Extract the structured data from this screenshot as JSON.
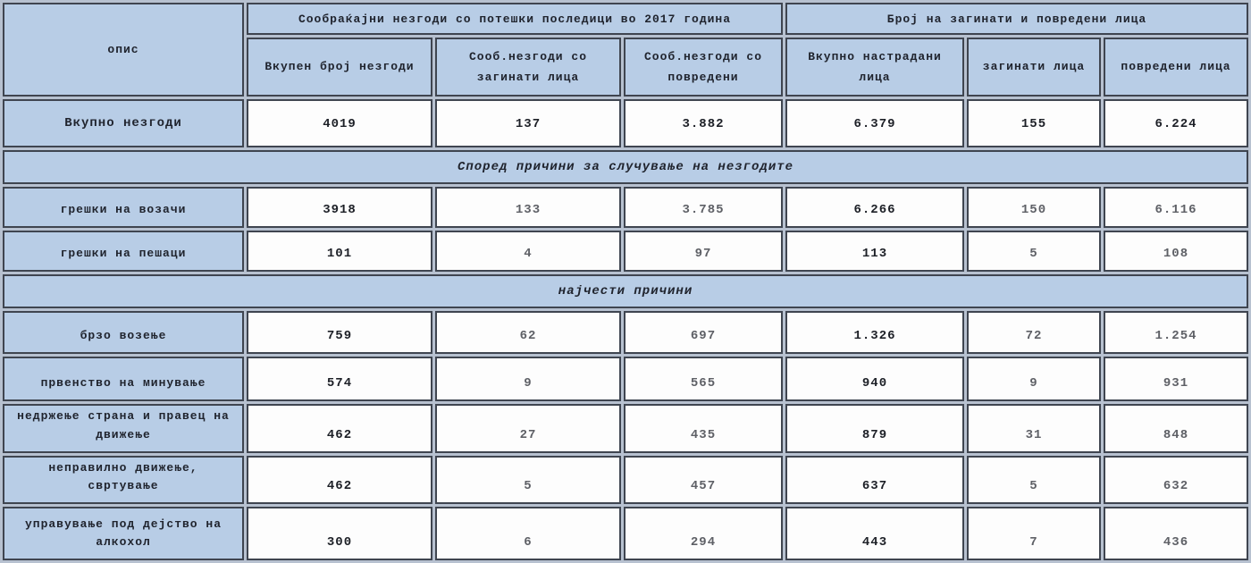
{
  "table": {
    "corner_label": "опис",
    "group_headers": [
      "Сообраќајни незгоди со потешки последици во 2017 година",
      "Број на загинати и повредени лица"
    ],
    "columns": [
      "Вкупен број незгоди",
      "Сооб.незгоди со загинати лица",
      "Сооб.незгоди со повредени",
      "Вкупно настрадани лица",
      "загинати лица",
      "повредени лица"
    ],
    "total_row": {
      "label": "Вкупно незгоди",
      "values": [
        "4019",
        "137",
        "3.882",
        "6.379",
        "155",
        "6.224"
      ]
    },
    "sections": [
      {
        "band": "Според причини за случување на незгодите",
        "rows": [
          {
            "label": "грешки на возачи",
            "values": [
              "3918",
              "133",
              "3.785",
              "6.266",
              "150",
              "6.116"
            ]
          },
          {
            "label": "грешки на пешаци",
            "values": [
              "101",
              "4",
              "97",
              "113",
              "5",
              "108"
            ]
          }
        ]
      },
      {
        "band": "најчести причини",
        "rows": [
          {
            "label": "брзо возење",
            "values": [
              "759",
              "62",
              "697",
              "1.326",
              "72",
              "1.254"
            ]
          },
          {
            "label": "првенство на минување",
            "values": [
              "574",
              "9",
              "565",
              "940",
              "9",
              "931"
            ]
          },
          {
            "label": "недржење страна и правец на движење",
            "values": [
              "462",
              "27",
              "435",
              "879",
              "31",
              "848"
            ]
          },
          {
            "label": "неправилно движење, свртување",
            "values": [
              "462",
              "5",
              "457",
              "637",
              "5",
              "632"
            ]
          },
          {
            "label": "управување под дејство на алкохол",
            "values": [
              "300",
              "6",
              "294",
              "443",
              "7",
              "436"
            ]
          }
        ]
      }
    ],
    "colors": {
      "header_blue": "#b8cde6",
      "cell_white": "#fdfdfd",
      "border": "#3f4550",
      "text": "#20242e",
      "dim_value_text": "#5e6066"
    }
  },
  "chart_data": {
    "type": "table",
    "title": "Сообраќајни незгоди со потешки последици во 2017 година / Број на загинати и повредени лица",
    "columns": [
      "опис",
      "Вкупен број незгоди",
      "Сооб.незгоди со загинати лица",
      "Сооб.незгоди со повредени",
      "Вкупно настрадани лица",
      "загинати лица",
      "повредени лица"
    ],
    "rows": [
      [
        "Вкупно незгоди",
        4019,
        137,
        3882,
        6379,
        155,
        6224
      ],
      [
        "грешки на возачи",
        3918,
        133,
        3785,
        6266,
        150,
        6116
      ],
      [
        "грешки на пешаци",
        101,
        4,
        97,
        113,
        5,
        108
      ],
      [
        "брзо возење",
        759,
        62,
        697,
        1326,
        72,
        1254
      ],
      [
        "првенство на минување",
        574,
        9,
        565,
        940,
        9,
        931
      ],
      [
        "недржење страна и правец на движење",
        462,
        27,
        435,
        879,
        31,
        848
      ],
      [
        "неправилно движење, свртување",
        462,
        5,
        457,
        637,
        5,
        632
      ],
      [
        "управување под дејство на алкохол",
        300,
        6,
        294,
        443,
        7,
        436
      ]
    ],
    "section_bands": [
      "Според причини за случување на незгодите",
      "најчести причини"
    ]
  }
}
